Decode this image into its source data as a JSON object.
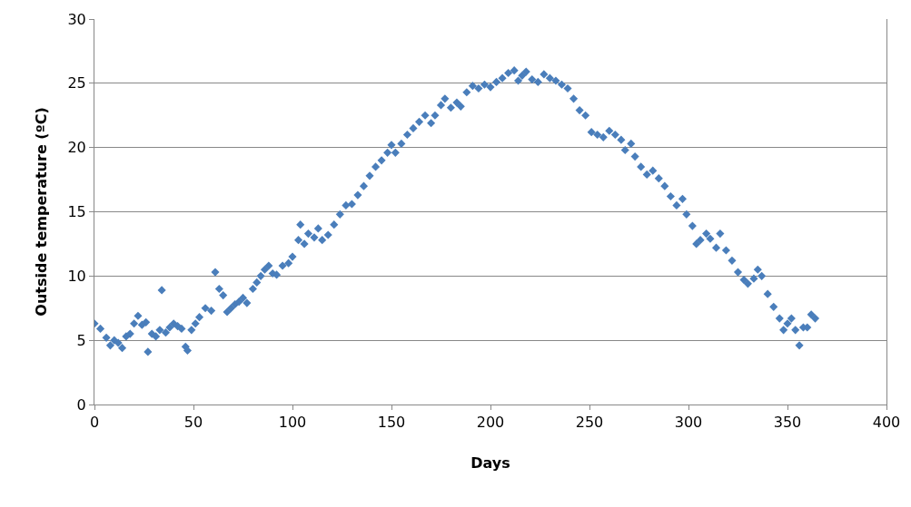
{
  "chart_data": {
    "type": "scatter",
    "xlabel": "Days",
    "ylabel": "Outside temperature (ºC)",
    "marker": "diamond",
    "grid": "y",
    "xlim": [
      0,
      400
    ],
    "xticks": [
      0,
      50,
      100,
      150,
      200,
      250,
      300,
      350,
      400
    ],
    "ylim": [
      0,
      30
    ],
    "yticks": [
      0,
      5,
      10,
      15,
      20,
      25,
      30
    ],
    "series": [
      {
        "color": "#4a7ebb",
        "x": [
          0,
          3,
          6,
          8,
          10,
          12,
          14,
          16,
          18,
          20,
          22,
          24,
          26,
          27,
          29,
          31,
          33,
          34,
          36,
          38,
          40,
          42,
          44,
          46,
          47,
          49,
          51,
          53,
          56,
          59,
          61,
          63,
          65,
          67,
          69,
          71,
          73,
          75,
          77,
          80,
          82,
          84,
          86,
          88,
          90,
          92,
          95,
          98,
          100,
          103,
          104,
          106,
          108,
          111,
          113,
          115,
          118,
          121,
          124,
          127,
          130,
          133,
          136,
          139,
          142,
          145,
          148,
          150,
          152,
          155,
          158,
          161,
          164,
          167,
          170,
          172,
          175,
          177,
          180,
          183,
          185,
          188,
          191,
          194,
          197,
          200,
          203,
          206,
          209,
          212,
          214,
          216,
          218,
          221,
          224,
          227,
          230,
          233,
          236,
          239,
          242,
          245,
          248,
          251,
          254,
          257,
          260,
          263,
          266,
          268,
          271,
          273,
          276,
          279,
          282,
          285,
          288,
          291,
          294,
          297,
          299,
          302,
          304,
          306,
          309,
          311,
          314,
          316,
          319,
          322,
          325,
          328,
          330,
          333,
          335,
          337,
          340,
          343,
          346,
          348,
          350,
          352,
          354,
          356,
          358,
          360,
          362,
          364
        ],
        "values": [
          6.3,
          5.9,
          5.2,
          4.6,
          5.0,
          4.8,
          4.4,
          5.3,
          5.5,
          6.3,
          6.9,
          6.2,
          6.4,
          4.1,
          5.5,
          5.3,
          5.8,
          8.9,
          5.6,
          6.0,
          6.3,
          6.1,
          5.9,
          4.5,
          4.2,
          5.8,
          6.3,
          6.8,
          7.5,
          7.3,
          10.3,
          9.0,
          8.5,
          7.2,
          7.5,
          7.8,
          8.0,
          8.3,
          7.9,
          9.0,
          9.5,
          10.0,
          10.5,
          10.8,
          10.2,
          10.1,
          10.8,
          11.0,
          11.5,
          12.8,
          14.0,
          12.5,
          13.3,
          13.0,
          13.7,
          12.8,
          13.2,
          14.0,
          14.8,
          15.5,
          15.6,
          16.3,
          17.0,
          17.8,
          18.5,
          19.0,
          19.6,
          20.2,
          19.6,
          20.3,
          21.0,
          21.5,
          22.0,
          22.5,
          21.9,
          22.5,
          23.3,
          23.8,
          23.1,
          23.5,
          23.2,
          24.3,
          24.8,
          24.6,
          24.9,
          24.7,
          25.1,
          25.4,
          25.8,
          26.0,
          25.2,
          25.6,
          25.9,
          25.3,
          25.1,
          25.7,
          25.4,
          25.2,
          24.9,
          24.6,
          23.8,
          22.9,
          22.5,
          21.2,
          21.0,
          20.8,
          21.3,
          21.0,
          20.6,
          19.8,
          20.3,
          19.3,
          18.5,
          17.9,
          18.2,
          17.6,
          17.0,
          16.2,
          15.5,
          16.0,
          14.8,
          13.9,
          12.5,
          12.8,
          13.3,
          12.9,
          12.2,
          13.3,
          12.0,
          11.2,
          10.3,
          9.7,
          9.4,
          9.8,
          10.5,
          10.0,
          8.6,
          7.6,
          6.7,
          5.8,
          6.3,
          6.7,
          5.8,
          4.6,
          6.0,
          6.0,
          7.0,
          6.7
        ]
      }
    ]
  }
}
